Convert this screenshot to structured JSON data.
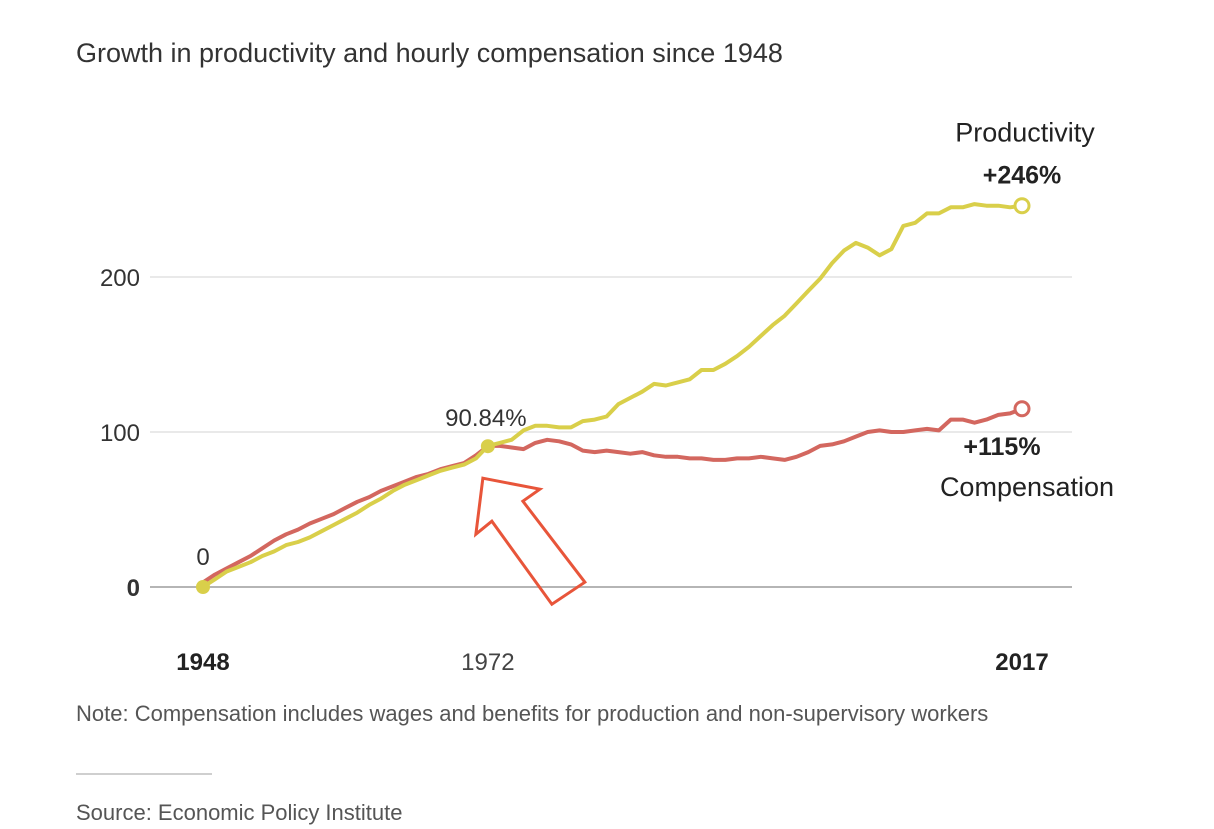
{
  "title": "Growth in productivity and hourly compensation since 1948",
  "note": "Note: Compensation includes wages and benefits for production and non-supervisory workers",
  "source": "Source: Economic Policy Institute",
  "chart_data": {
    "type": "line",
    "ylim": [
      0,
      250
    ],
    "yticks": [
      {
        "value": 0,
        "label": "0"
      },
      {
        "value": 100,
        "label": "100"
      },
      {
        "value": 200,
        "label": "200"
      }
    ],
    "xlim": [
      1948,
      2017
    ],
    "xticks": [
      {
        "value": 1948,
        "label": "1948"
      },
      {
        "value": 1972,
        "label": "1972"
      },
      {
        "value": 2017,
        "label": "2017"
      }
    ],
    "grid": true,
    "colors": {
      "productivity": "#d9cf4a",
      "compensation": "#d3675f",
      "arrow": "#e8553a"
    },
    "series": [
      {
        "name": "Productivity",
        "value_label": "+246%",
        "x": [
          1948,
          1949,
          1950,
          1951,
          1952,
          1953,
          1954,
          1955,
          1956,
          1957,
          1958,
          1959,
          1960,
          1961,
          1962,
          1963,
          1964,
          1965,
          1966,
          1967,
          1968,
          1969,
          1970,
          1971,
          1972,
          1973,
          1974,
          1975,
          1976,
          1977,
          1978,
          1979,
          1980,
          1981,
          1982,
          1983,
          1984,
          1985,
          1986,
          1987,
          1988,
          1989,
          1990,
          1991,
          1992,
          1993,
          1994,
          1995,
          1996,
          1997,
          1998,
          1999,
          2000,
          2001,
          2002,
          2003,
          2004,
          2005,
          2006,
          2007,
          2008,
          2009,
          2010,
          2011,
          2012,
          2013,
          2014,
          2015,
          2016,
          2017
        ],
        "values": [
          0,
          5,
          10,
          13,
          16,
          20,
          23,
          27,
          29,
          32,
          36,
          40,
          44,
          48,
          53,
          57,
          62,
          66,
          69,
          72,
          75,
          77,
          79,
          83,
          91,
          93,
          95,
          101,
          104,
          104,
          103,
          103,
          107,
          108,
          110,
          118,
          122,
          126,
          131,
          130,
          132,
          134,
          140,
          140,
          144,
          149,
          155,
          162,
          169,
          175,
          183,
          191,
          199,
          209,
          217,
          222,
          219,
          214,
          218,
          233,
          235,
          241,
          241,
          245,
          245,
          247,
          246,
          246,
          245,
          246
        ]
      },
      {
        "name": "Compensation",
        "value_label": "+115%",
        "x": [
          1948,
          1949,
          1950,
          1951,
          1952,
          1953,
          1954,
          1955,
          1956,
          1957,
          1958,
          1959,
          1960,
          1961,
          1962,
          1963,
          1964,
          1965,
          1966,
          1967,
          1968,
          1969,
          1970,
          1971,
          1972,
          1973,
          1974,
          1975,
          1976,
          1977,
          1978,
          1979,
          1980,
          1981,
          1982,
          1983,
          1984,
          1985,
          1986,
          1987,
          1988,
          1989,
          1990,
          1991,
          1992,
          1993,
          1994,
          1995,
          1996,
          1997,
          1998,
          1999,
          2000,
          2001,
          2002,
          2003,
          2004,
          2005,
          2006,
          2007,
          2008,
          2009,
          2010,
          2011,
          2012,
          2013,
          2014,
          2015,
          2016,
          2017
        ],
        "values": [
          3,
          8,
          12,
          16,
          20,
          25,
          30,
          34,
          37,
          41,
          44,
          47,
          51,
          55,
          58,
          62,
          65,
          68,
          71,
          73,
          76,
          78,
          80,
          85,
          91,
          91,
          90,
          89,
          93,
          95,
          94,
          92,
          88,
          87,
          88,
          87,
          86,
          87,
          85,
          84,
          84,
          83,
          83,
          82,
          82,
          83,
          83,
          84,
          83,
          82,
          84,
          87,
          91,
          92,
          94,
          97,
          100,
          101,
          100,
          100,
          101,
          102,
          101,
          108,
          108,
          106,
          108,
          111,
          112,
          115
        ]
      }
    ],
    "annotations": [
      {
        "x": 1948,
        "y": 0,
        "label": "0"
      },
      {
        "x": 1972,
        "y": 90.84,
        "label": "90.84%"
      }
    ]
  }
}
